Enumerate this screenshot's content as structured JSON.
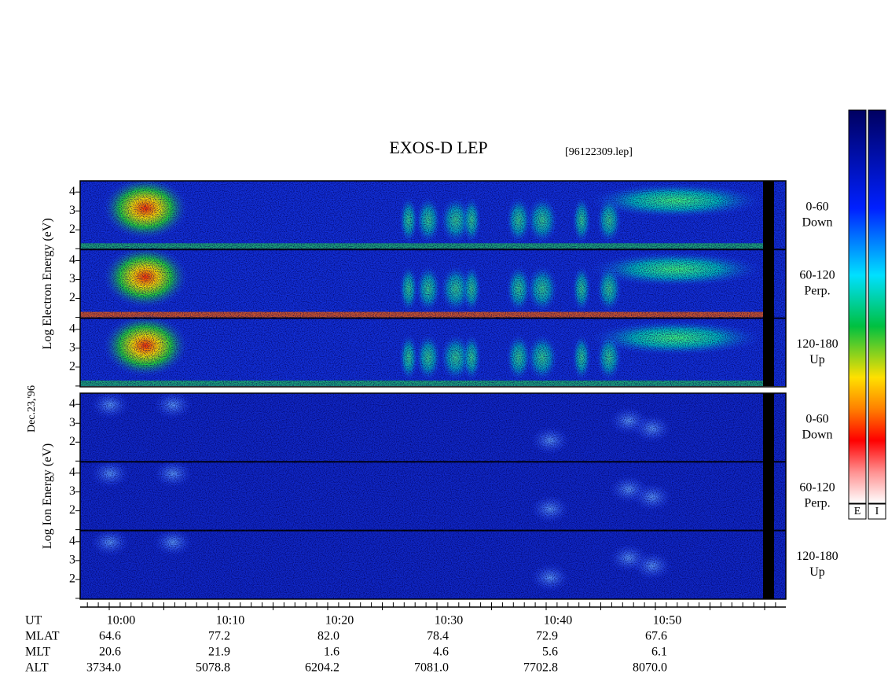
{
  "header": {
    "title": "EXOS-D LEP",
    "file": "[96122309.lep]"
  },
  "date": "Dec.23,'96",
  "electron": {
    "ylabel": [
      "Log",
      "Electron",
      "Energy",
      "(eV)"
    ],
    "panels": [
      {
        "angle": "0-60",
        "dir": "Down"
      },
      {
        "angle": "60-120",
        "dir": "Perp."
      },
      {
        "angle": "120-180",
        "dir": "Up"
      }
    ]
  },
  "ion": {
    "ylabel": [
      "Log",
      "Ion",
      "Energy",
      "(eV)"
    ],
    "panels": [
      {
        "angle": "0-60",
        "dir": "Down"
      },
      {
        "angle": "60-120",
        "dir": "Perp."
      },
      {
        "angle": "120-180",
        "dir": "Up"
      }
    ]
  },
  "yticks": [
    "2",
    "3",
    "4"
  ],
  "orbit": {
    "labels": [
      "UT",
      "MLAT",
      "MLT",
      "ALT"
    ],
    "columns": [
      [
        "10:00",
        "64.6",
        "20.6",
        "3734.0"
      ],
      [
        "10:10",
        "77.2",
        "21.9",
        "5078.8"
      ],
      [
        "10:20",
        "82.0",
        "1.6",
        "6204.2"
      ],
      [
        "10:30",
        "78.4",
        "4.6",
        "7081.0"
      ],
      [
        "10:40",
        "72.9",
        "5.6",
        "7702.8"
      ],
      [
        "10:50",
        "67.6",
        "6.1",
        "8070.0"
      ]
    ]
  },
  "colorbar": [
    "E",
    "I"
  ]
}
